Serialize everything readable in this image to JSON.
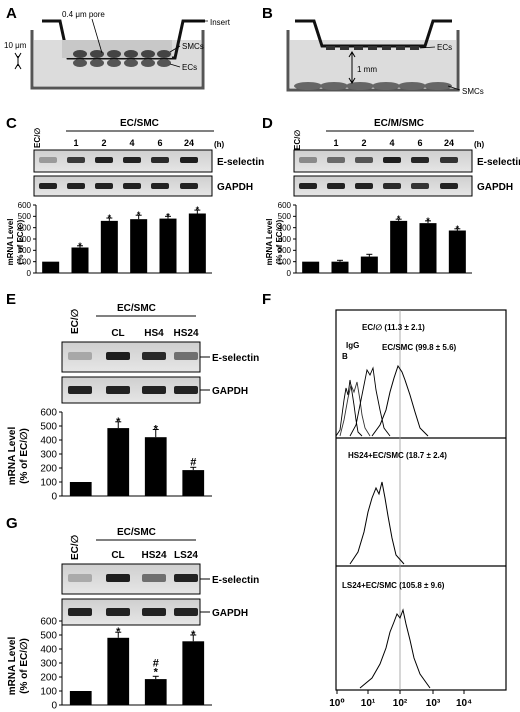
{
  "panels": {
    "A": {
      "label": "A",
      "pore": "0.4 μm pore",
      "insert": "Insert",
      "smcs": "SMCs",
      "ecs": "ECs",
      "distance": "10 μm"
    },
    "B": {
      "label": "B",
      "ecs": "ECs",
      "distance": "1 mm",
      "smcs": "SMCs"
    },
    "C": {
      "label": "C",
      "control": "EC/∅",
      "group": "EC/SMC",
      "unit": "(h)",
      "lanes": [
        "1",
        "2",
        "4",
        "6",
        "24"
      ],
      "band1": "E-selectin",
      "band2": "GAPDH",
      "ylabel1": "mRNA Level",
      "ylabel2": "(% of EC/∅)"
    },
    "D": {
      "label": "D",
      "control": "EC/∅",
      "group": "EC/M/SMC",
      "unit": "(h)",
      "lanes": [
        "1",
        "2",
        "4",
        "6",
        "24"
      ],
      "band1": "E-selectin",
      "band2": "GAPDH",
      "ylabel1": "mRNA Level",
      "ylabel2": "(% of EC/∅)"
    },
    "E": {
      "label": "E",
      "control": "EC/∅",
      "group": "EC/SMC",
      "lanes": [
        "CL",
        "HS4",
        "HS24"
      ],
      "band1": "E-selectin",
      "band2": "GAPDH",
      "ylabel1": "mRNA Level",
      "ylabel2": "(% of EC/∅)"
    },
    "F": {
      "label": "F",
      "b": "B",
      "igg": "IgG",
      "ec_null": "EC/∅ (11.3 ± 2.1)",
      "ec_smc": "EC/SMC (99.8 ± 5.6)",
      "hs24": "HS24+EC/SMC (18.7 ± 2.4)",
      "ls24": "LS24+EC/SMC (105.8 ± 9.6)",
      "xticks": [
        "10⁰",
        "10¹",
        "10²",
        "10³",
        "10⁴"
      ]
    },
    "G": {
      "label": "G",
      "control": "EC/∅",
      "group": "EC/SMC",
      "lanes": [
        "CL",
        "HS24",
        "LS24"
      ],
      "band1": "E-selectin",
      "band2": "GAPDH",
      "ylabel1": "mRNA Level",
      "ylabel2": "(% of EC/∅)"
    }
  },
  "chart_data": [
    {
      "type": "bar",
      "panel": "C",
      "categories": [
        "EC/∅",
        "1",
        "2",
        "4",
        "6",
        "24"
      ],
      "values": [
        100,
        225,
        460,
        475,
        480,
        525
      ],
      "errors": [
        0,
        15,
        25,
        35,
        20,
        30
      ],
      "significance": [
        "",
        "*",
        "*",
        "*",
        "*",
        "*"
      ],
      "ylim": [
        0,
        600
      ],
      "yticks": [
        0,
        100,
        200,
        300,
        400,
        500,
        600
      ],
      "xlabel": "",
      "ylabel": "mRNA Level (% of EC/∅)"
    },
    {
      "type": "bar",
      "panel": "D",
      "categories": [
        "EC/∅",
        "1",
        "2",
        "4",
        "6",
        "24"
      ],
      "values": [
        100,
        100,
        145,
        460,
        440,
        375
      ],
      "errors": [
        0,
        12,
        20,
        15,
        20,
        15
      ],
      "significance": [
        "",
        "",
        "",
        "*",
        "*",
        "*"
      ],
      "ylim": [
        0,
        600
      ],
      "yticks": [
        0,
        100,
        200,
        300,
        400,
        500,
        600
      ],
      "xlabel": "",
      "ylabel": "mRNA Level (% of EC/∅)"
    },
    {
      "type": "bar",
      "panel": "E",
      "categories": [
        "EC/∅",
        "CL",
        "HS4",
        "HS24"
      ],
      "values": [
        100,
        485,
        420,
        185
      ],
      "errors": [
        0,
        45,
        55,
        20
      ],
      "significance": [
        "",
        "*",
        "*",
        "#"
      ],
      "ylim": [
        0,
        600
      ],
      "yticks": [
        0,
        100,
        200,
        300,
        400,
        500,
        600
      ],
      "xlabel": "",
      "ylabel": "mRNA Level (% of EC/∅)"
    },
    {
      "type": "bar",
      "panel": "G",
      "categories": [
        "EC/∅",
        "CL",
        "HS24",
        "LS24"
      ],
      "values": [
        100,
        480,
        185,
        455
      ],
      "errors": [
        0,
        40,
        20,
        45
      ],
      "significance": [
        "",
        "*",
        "#*",
        "*"
      ],
      "ylim": [
        0,
        600
      ],
      "yticks": [
        0,
        100,
        200,
        300,
        400,
        500,
        600
      ],
      "xlabel": "",
      "ylabel": "mRNA Level (% of EC/∅)"
    }
  ]
}
